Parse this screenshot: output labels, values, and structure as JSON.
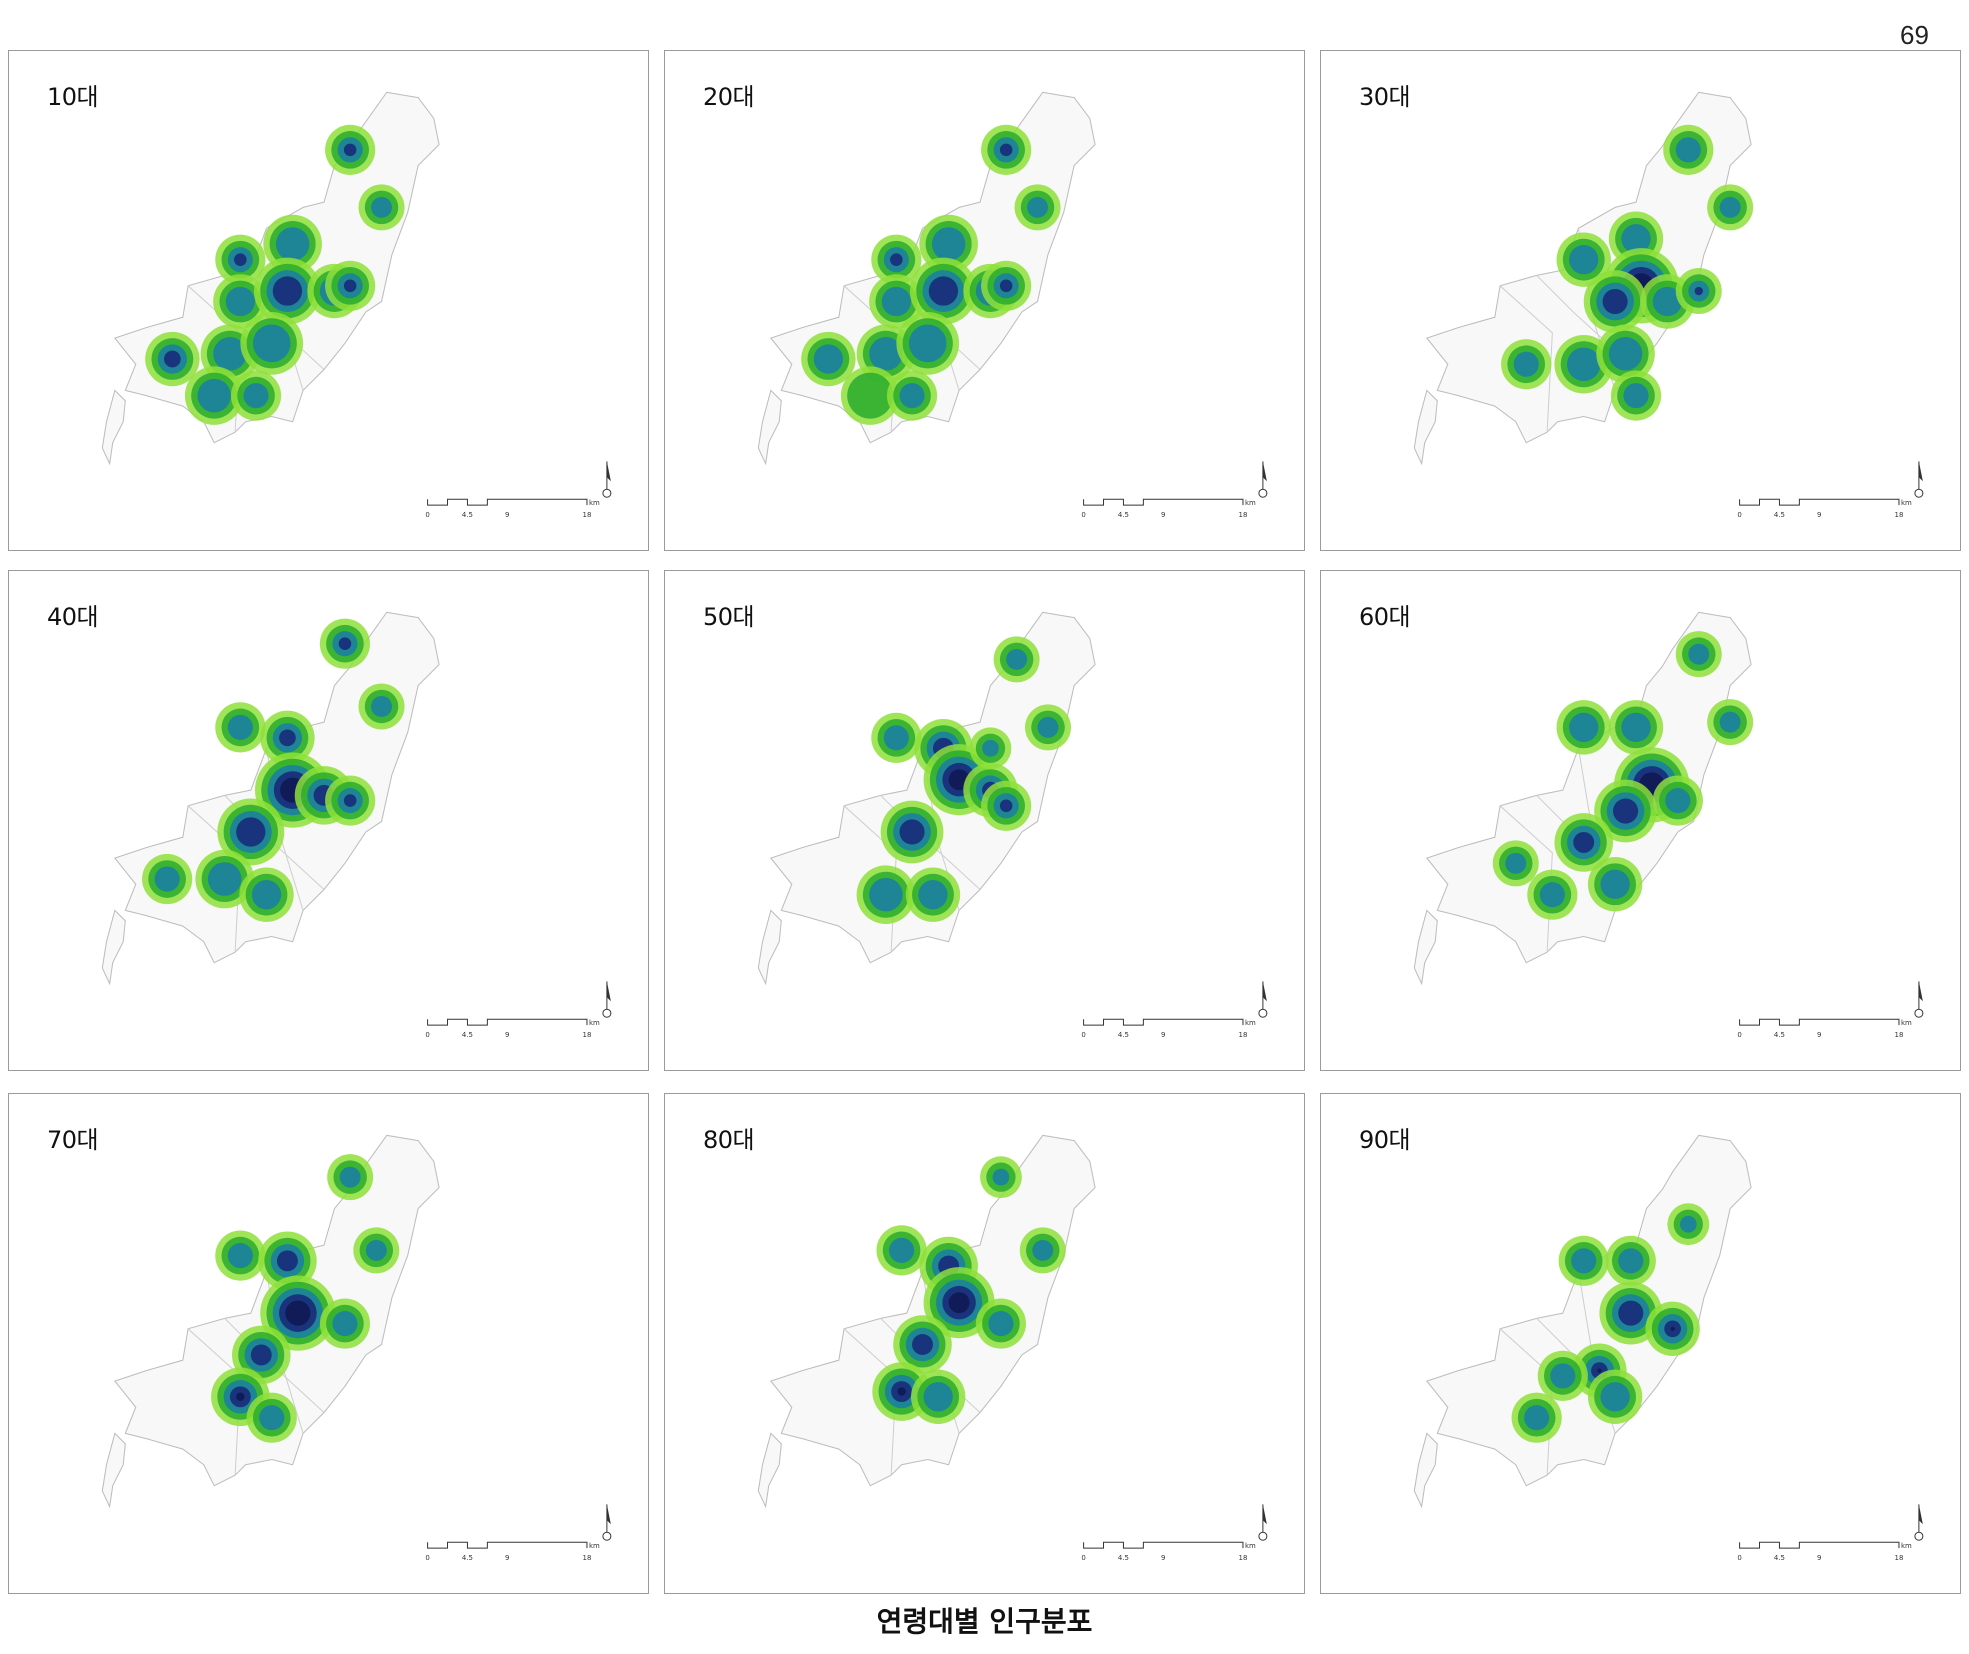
{
  "page_number": "69",
  "caption": "연령대별 인구분포",
  "scale_bar": {
    "ticks": [
      "0",
      "4.5",
      "9",
      "18"
    ],
    "unit": "km"
  },
  "colors": {
    "low": "#8ee03a",
    "mid": "#2fae2f",
    "high": "#1b7fa0",
    "peak": "#1a2a7a"
  },
  "panels": [
    {
      "label": "10대"
    },
    {
      "label": "20대"
    },
    {
      "label": "30대"
    },
    {
      "label": "40대"
    },
    {
      "label": "50대"
    },
    {
      "label": "60대"
    },
    {
      "label": "70대"
    },
    {
      "label": "80대"
    },
    {
      "label": "90대"
    }
  ]
}
